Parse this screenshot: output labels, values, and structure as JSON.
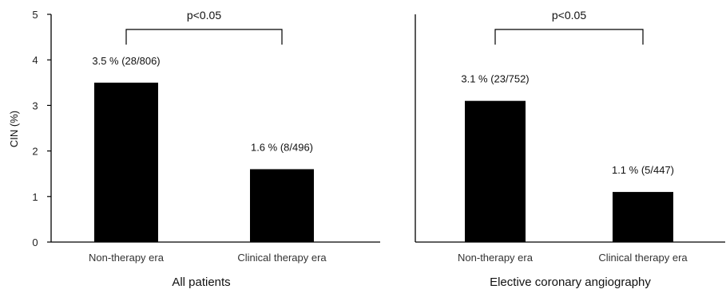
{
  "chart_data": [
    {
      "type": "bar",
      "title": "All patients",
      "xlabel": "",
      "ylabel": "CIN (%)",
      "ylim": [
        0,
        5
      ],
      "yticks": [
        "0",
        "1",
        "2",
        "3",
        "4",
        "5"
      ],
      "categories": [
        "Non-therapy era",
        "Clinical therapy era"
      ],
      "values": [
        3.5,
        1.6
      ],
      "data_labels": [
        "3.5 % (28/806)",
        "1.6 % (8/496)"
      ],
      "significance": "p<0.05",
      "bar_color": "#000000"
    },
    {
      "type": "bar",
      "title": "Elective coronary angiography",
      "xlabel": "",
      "ylabel": "",
      "ylim": [
        0,
        5
      ],
      "categories": [
        "Non-therapy era",
        "Clinical therapy era"
      ],
      "values": [
        3.1,
        1.1
      ],
      "data_labels": [
        "3.1 % (23/752)",
        "1.1 % (5/447)"
      ],
      "significance": "p<0.05",
      "bar_color": "#000000"
    }
  ]
}
